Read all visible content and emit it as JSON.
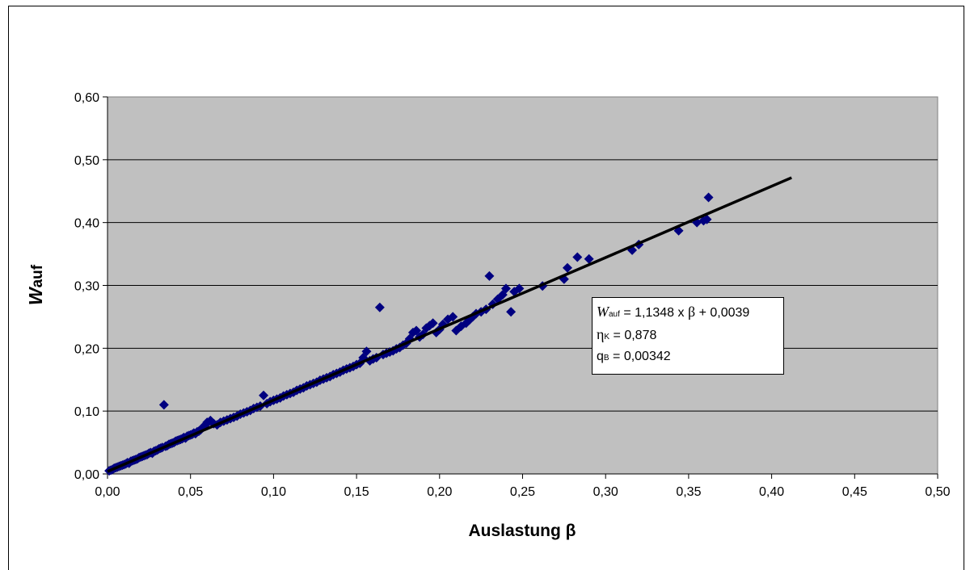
{
  "chart_data": {
    "type": "scatter",
    "title": "",
    "xlabel": "Auslastung β",
    "ylabel_main": "W",
    "ylabel_sub": "auf",
    "xlim": [
      0,
      0.5
    ],
    "ylim": [
      0,
      0.6
    ],
    "x_ticks": [
      "0,00",
      "0,05",
      "0,10",
      "0,15",
      "0,20",
      "0,25",
      "0,30",
      "0,35",
      "0,40",
      "0,45",
      "0,50"
    ],
    "y_ticks": [
      "0,00",
      "0,10",
      "0,20",
      "0,30",
      "0,40",
      "0,50",
      "0,60"
    ],
    "grid": "horizontal",
    "plot_background": "#c0c0c0",
    "marker_color": "#000080",
    "marker": "diamond",
    "trendline": {
      "slope": 1.1348,
      "intercept": 0.0039,
      "x_range": [
        0,
        0.412
      ],
      "color": "#000000"
    },
    "points": [
      [
        0.001,
        0.005
      ],
      [
        0.002,
        0.006
      ],
      [
        0.003,
        0.007
      ],
      [
        0.004,
        0.009
      ],
      [
        0.005,
        0.01
      ],
      [
        0.006,
        0.011
      ],
      [
        0.007,
        0.012
      ],
      [
        0.008,
        0.013
      ],
      [
        0.009,
        0.014
      ],
      [
        0.01,
        0.015
      ],
      [
        0.011,
        0.016
      ],
      [
        0.012,
        0.018
      ],
      [
        0.013,
        0.017
      ],
      [
        0.014,
        0.02
      ],
      [
        0.015,
        0.021
      ],
      [
        0.016,
        0.022
      ],
      [
        0.017,
        0.023
      ],
      [
        0.018,
        0.024
      ],
      [
        0.019,
        0.026
      ],
      [
        0.02,
        0.027
      ],
      [
        0.021,
        0.028
      ],
      [
        0.022,
        0.029
      ],
      [
        0.023,
        0.03
      ],
      [
        0.024,
        0.031
      ],
      [
        0.025,
        0.033
      ],
      [
        0.026,
        0.034
      ],
      [
        0.027,
        0.033
      ],
      [
        0.028,
        0.036
      ],
      [
        0.029,
        0.037
      ],
      [
        0.03,
        0.038
      ],
      [
        0.031,
        0.04
      ],
      [
        0.032,
        0.041
      ],
      [
        0.033,
        0.042
      ],
      [
        0.034,
        0.11
      ],
      [
        0.035,
        0.044
      ],
      [
        0.036,
        0.045
      ],
      [
        0.037,
        0.047
      ],
      [
        0.038,
        0.048
      ],
      [
        0.039,
        0.049
      ],
      [
        0.04,
        0.05
      ],
      [
        0.041,
        0.052
      ],
      [
        0.042,
        0.053
      ],
      [
        0.043,
        0.054
      ],
      [
        0.044,
        0.055
      ],
      [
        0.045,
        0.056
      ],
      [
        0.046,
        0.058
      ],
      [
        0.047,
        0.057
      ],
      [
        0.048,
        0.06
      ],
      [
        0.049,
        0.061
      ],
      [
        0.05,
        0.062
      ],
      [
        0.051,
        0.063
      ],
      [
        0.052,
        0.065
      ],
      [
        0.053,
        0.064
      ],
      [
        0.054,
        0.067
      ],
      [
        0.055,
        0.068
      ],
      [
        0.056,
        0.07
      ],
      [
        0.057,
        0.073
      ],
      [
        0.058,
        0.075
      ],
      [
        0.059,
        0.078
      ],
      [
        0.06,
        0.082
      ],
      [
        0.062,
        0.085
      ],
      [
        0.064,
        0.08
      ],
      [
        0.066,
        0.078
      ],
      [
        0.068,
        0.082
      ],
      [
        0.07,
        0.084
      ],
      [
        0.072,
        0.086
      ],
      [
        0.074,
        0.088
      ],
      [
        0.076,
        0.09
      ],
      [
        0.078,
        0.092
      ],
      [
        0.08,
        0.095
      ],
      [
        0.082,
        0.097
      ],
      [
        0.084,
        0.099
      ],
      [
        0.086,
        0.101
      ],
      [
        0.088,
        0.104
      ],
      [
        0.09,
        0.106
      ],
      [
        0.092,
        0.108
      ],
      [
        0.094,
        0.125
      ],
      [
        0.096,
        0.112
      ],
      [
        0.098,
        0.115
      ],
      [
        0.1,
        0.117
      ],
      [
        0.102,
        0.119
      ],
      [
        0.104,
        0.121
      ],
      [
        0.106,
        0.124
      ],
      [
        0.108,
        0.126
      ],
      [
        0.11,
        0.128
      ],
      [
        0.112,
        0.13
      ],
      [
        0.114,
        0.133
      ],
      [
        0.116,
        0.135
      ],
      [
        0.118,
        0.137
      ],
      [
        0.12,
        0.14
      ],
      [
        0.122,
        0.142
      ],
      [
        0.124,
        0.144
      ],
      [
        0.126,
        0.146
      ],
      [
        0.128,
        0.149
      ],
      [
        0.13,
        0.151
      ],
      [
        0.132,
        0.153
      ],
      [
        0.134,
        0.155
      ],
      [
        0.136,
        0.158
      ],
      [
        0.138,
        0.16
      ],
      [
        0.14,
        0.162
      ],
      [
        0.142,
        0.165
      ],
      [
        0.144,
        0.167
      ],
      [
        0.146,
        0.169
      ],
      [
        0.148,
        0.171
      ],
      [
        0.15,
        0.174
      ],
      [
        0.152,
        0.176
      ],
      [
        0.154,
        0.185
      ],
      [
        0.156,
        0.195
      ],
      [
        0.158,
        0.18
      ],
      [
        0.16,
        0.183
      ],
      [
        0.162,
        0.185
      ],
      [
        0.164,
        0.265
      ],
      [
        0.166,
        0.19
      ],
      [
        0.168,
        0.192
      ],
      [
        0.17,
        0.194
      ],
      [
        0.172,
        0.196
      ],
      [
        0.174,
        0.199
      ],
      [
        0.176,
        0.201
      ],
      [
        0.178,
        0.205
      ],
      [
        0.18,
        0.208
      ],
      [
        0.182,
        0.215
      ],
      [
        0.184,
        0.225
      ],
      [
        0.186,
        0.228
      ],
      [
        0.188,
        0.218
      ],
      [
        0.19,
        0.222
      ],
      [
        0.192,
        0.232
      ],
      [
        0.194,
        0.236
      ],
      [
        0.196,
        0.24
      ],
      [
        0.198,
        0.225
      ],
      [
        0.2,
        0.23
      ],
      [
        0.202,
        0.238
      ],
      [
        0.205,
        0.246
      ],
      [
        0.208,
        0.25
      ],
      [
        0.21,
        0.228
      ],
      [
        0.213,
        0.235
      ],
      [
        0.216,
        0.24
      ],
      [
        0.218,
        0.245
      ],
      [
        0.22,
        0.25
      ],
      [
        0.222,
        0.255
      ],
      [
        0.225,
        0.258
      ],
      [
        0.228,
        0.262
      ],
      [
        0.23,
        0.315
      ],
      [
        0.232,
        0.27
      ],
      [
        0.235,
        0.278
      ],
      [
        0.238,
        0.285
      ],
      [
        0.24,
        0.295
      ],
      [
        0.243,
        0.258
      ],
      [
        0.245,
        0.29
      ],
      [
        0.248,
        0.295
      ],
      [
        0.262,
        0.299
      ],
      [
        0.275,
        0.31
      ],
      [
        0.277,
        0.328
      ],
      [
        0.283,
        0.345
      ],
      [
        0.29,
        0.342
      ],
      [
        0.316,
        0.356
      ],
      [
        0.32,
        0.365
      ],
      [
        0.344,
        0.387
      ],
      [
        0.355,
        0.4
      ],
      [
        0.359,
        0.403
      ],
      [
        0.361,
        0.405
      ],
      [
        0.362,
        0.44
      ]
    ]
  },
  "annotation": {
    "equation_var": "W",
    "equation_sub": "auf",
    "equation_rest": " = 1,1348 x ",
    "equation_beta": "β",
    "equation_tail": " + 0,0039",
    "eta_symbol": "η",
    "eta_sub": "K",
    "eta_value": " = 0,878",
    "q_symbol": "q",
    "q_sub": "B",
    "q_value": " = 0,00342"
  }
}
